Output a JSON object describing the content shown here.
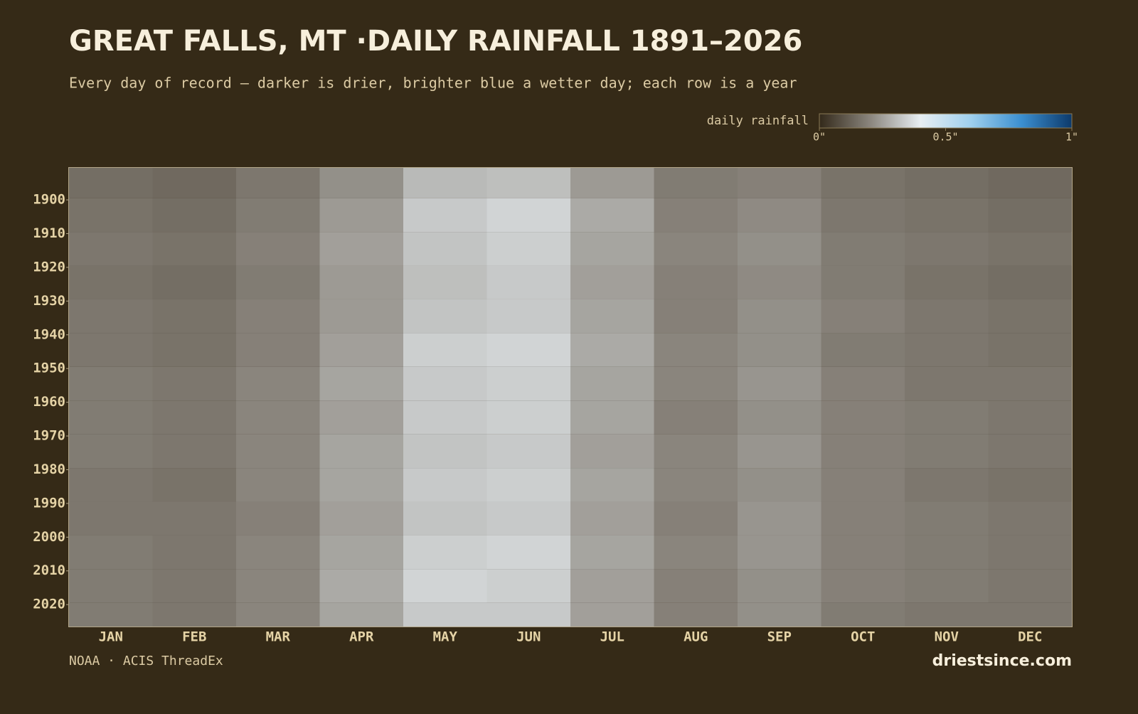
{
  "chart_data": {
    "type": "heatmap",
    "title": "GREAT FALLS, MT ·DAILY RAINFALL 1891–2026",
    "subtitle": "Every day of record — darker is drier, brighter blue a wetter day; each row is a year",
    "colorbar_label": "daily rainfall",
    "colorbar_lim": [
      0,
      1
    ],
    "colorbar_ticks": [
      {
        "value": 0,
        "label": "0\""
      },
      {
        "value": 0.5,
        "label": "0.5\""
      },
      {
        "value": 1,
        "label": "1\""
      }
    ],
    "colorscale": [
      "#33291a",
      "#8a857d",
      "#e8eef2",
      "#9fd0ee",
      "#3b8fd0",
      "#0d3a6b"
    ],
    "categories": [
      "JAN",
      "FEB",
      "MAR",
      "APR",
      "MAY",
      "JUN",
      "JUL",
      "AUG",
      "SEP",
      "OCT",
      "NOV",
      "DEC"
    ],
    "ybins": [
      1891,
      1900,
      1910,
      1920,
      1930,
      1940,
      1950,
      1960,
      1970,
      1980,
      1990,
      2000,
      2010,
      2020,
      2027
    ],
    "ylim": [
      1891,
      2027
    ],
    "yticks": [
      1900,
      1910,
      1920,
      1930,
      1940,
      1950,
      1960,
      1970,
      1980,
      1990,
      2000,
      2010,
      2020
    ],
    "values": [
      [
        0.15,
        0.14,
        0.17,
        0.22,
        0.3,
        0.31,
        0.24,
        0.18,
        0.19,
        0.16,
        0.15,
        0.14
      ],
      [
        0.16,
        0.15,
        0.18,
        0.24,
        0.33,
        0.35,
        0.27,
        0.19,
        0.21,
        0.17,
        0.16,
        0.15
      ],
      [
        0.17,
        0.16,
        0.19,
        0.25,
        0.32,
        0.34,
        0.26,
        0.2,
        0.22,
        0.18,
        0.17,
        0.16
      ],
      [
        0.16,
        0.15,
        0.18,
        0.24,
        0.31,
        0.33,
        0.25,
        0.19,
        0.21,
        0.18,
        0.16,
        0.15
      ],
      [
        0.17,
        0.16,
        0.19,
        0.24,
        0.32,
        0.33,
        0.26,
        0.19,
        0.22,
        0.19,
        0.17,
        0.16
      ],
      [
        0.17,
        0.16,
        0.19,
        0.25,
        0.34,
        0.35,
        0.27,
        0.2,
        0.22,
        0.18,
        0.17,
        0.16
      ],
      [
        0.18,
        0.17,
        0.2,
        0.26,
        0.33,
        0.34,
        0.26,
        0.2,
        0.23,
        0.19,
        0.17,
        0.17
      ],
      [
        0.18,
        0.17,
        0.2,
        0.25,
        0.33,
        0.34,
        0.26,
        0.19,
        0.22,
        0.19,
        0.18,
        0.17
      ],
      [
        0.18,
        0.17,
        0.2,
        0.26,
        0.32,
        0.33,
        0.25,
        0.2,
        0.23,
        0.19,
        0.18,
        0.17
      ],
      [
        0.17,
        0.16,
        0.2,
        0.26,
        0.33,
        0.34,
        0.26,
        0.2,
        0.22,
        0.19,
        0.17,
        0.16
      ],
      [
        0.17,
        0.17,
        0.19,
        0.25,
        0.32,
        0.33,
        0.25,
        0.19,
        0.23,
        0.19,
        0.18,
        0.17
      ],
      [
        0.18,
        0.17,
        0.2,
        0.26,
        0.34,
        0.35,
        0.26,
        0.2,
        0.23,
        0.19,
        0.18,
        0.17
      ],
      [
        0.18,
        0.17,
        0.2,
        0.27,
        0.35,
        0.34,
        0.25,
        0.19,
        0.22,
        0.19,
        0.18,
        0.17
      ],
      [
        0.18,
        0.17,
        0.2,
        0.26,
        0.33,
        0.33,
        0.25,
        0.19,
        0.22,
        0.18,
        0.17,
        0.17
      ]
    ],
    "source": "NOAA · ACIS ThreadEx",
    "brand": "driestsince.com"
  }
}
